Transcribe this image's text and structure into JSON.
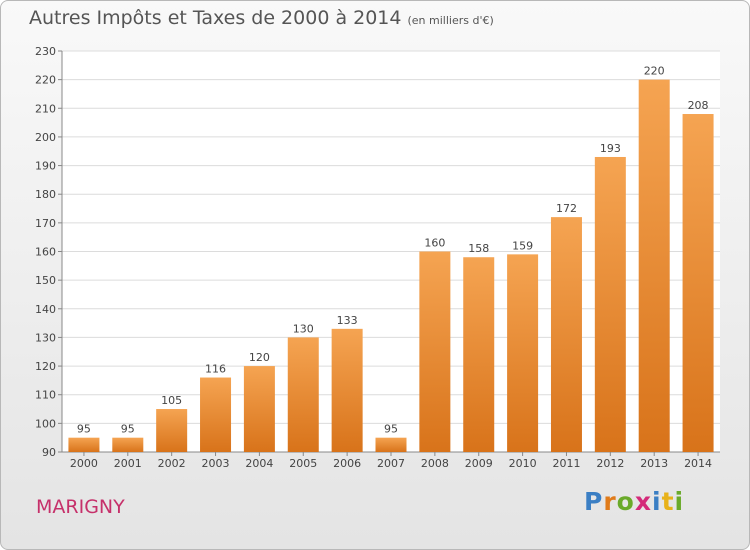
{
  "title": "Autres Impôts et Taxes de 2000 à 2014",
  "unit_label": "(en milliers d'€)",
  "commune": "MARIGNY",
  "logo": {
    "letters": [
      "P",
      "r",
      "o",
      "x",
      "i",
      "t",
      "i"
    ],
    "colors": [
      "#3b7fc4",
      "#e07b1a",
      "#6aaa2a",
      "#d42a7a",
      "#3b7fc4",
      "#e8b21a",
      "#6aaa2a"
    ]
  },
  "colors": {
    "bar": "#f0943a",
    "bar_dark": "#d97418",
    "commune": "#c6306a"
  },
  "chart_data": {
    "type": "bar",
    "categories": [
      "2000",
      "2001",
      "2002",
      "2003",
      "2004",
      "2005",
      "2006",
      "2007",
      "2008",
      "2009",
      "2010",
      "2011",
      "2012",
      "2013",
      "2014"
    ],
    "values": [
      95,
      95,
      105,
      116,
      120,
      130,
      133,
      95,
      160,
      158,
      159,
      172,
      193,
      220,
      208
    ],
    "ylim": [
      90,
      230
    ],
    "yticks": [
      90,
      100,
      110,
      120,
      130,
      140,
      150,
      160,
      170,
      180,
      190,
      200,
      210,
      220,
      230
    ],
    "grid": true,
    "xlabel": "",
    "ylabel": ""
  }
}
